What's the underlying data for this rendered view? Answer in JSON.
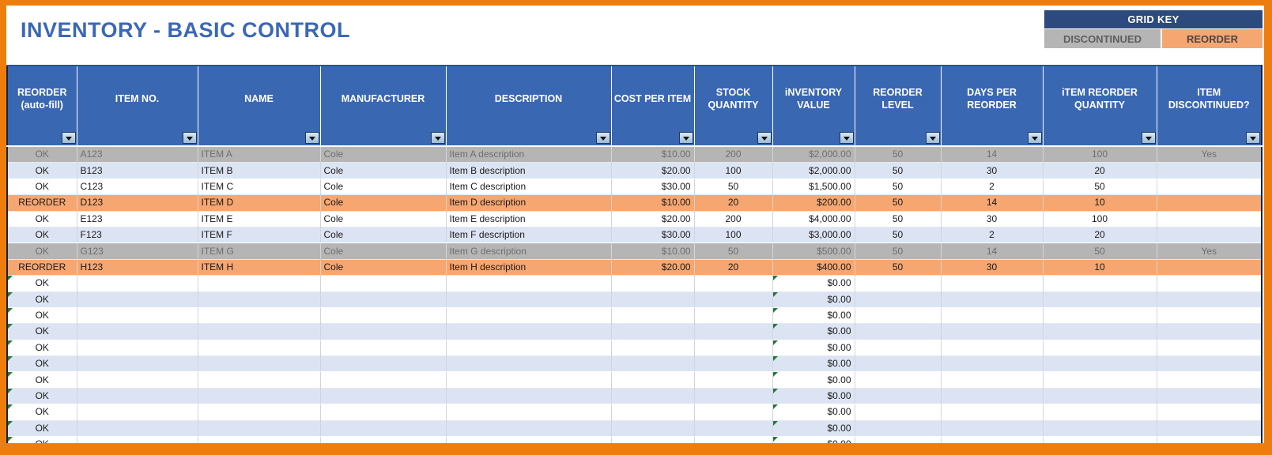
{
  "title": "INVENTORY - BASIC CONTROL",
  "grid_key": {
    "title": "GRID KEY",
    "discontinued_label": "DISCONTINUED",
    "reorder_label": "REORDER"
  },
  "colors": {
    "header_blue": "#3a67b2",
    "grid_key_navy": "#2c4a7d",
    "discontinued_gray": "#b5b5b5",
    "reorder_orange": "#f5a671",
    "band_blue": "#dce4f4",
    "page_border_orange": "#ee7d0d",
    "title_blue": "#3b67b7"
  },
  "table": {
    "columns": [
      "REORDER (auto-fill)",
      "ITEM NO.",
      "NAME",
      "MANUFACTURER",
      "DESCRIPTION",
      "COST PER ITEM",
      "STOCK QUANTITY",
      "iNVENTORY VALUE",
      "REORDER LEVEL",
      "DAYS PER REORDER",
      "iTEM REORDER QUANTITY",
      "ITEM DISCONTINUED?"
    ],
    "filter_icon": "filter-dropdown-icon",
    "filled_rows": [
      {
        "band": "gray",
        "status": "OK",
        "item_no": "A123",
        "name": "ITEM A",
        "manufacturer": "Cole",
        "description": "Item A description",
        "cost_per_item": "$10.00",
        "stock_quantity": "200",
        "inventory_value": "$2,000.00",
        "reorder_level": "50",
        "days_per_reorder": "14",
        "item_reorder_quantity": "100",
        "item_discontinued": "Yes"
      },
      {
        "band": "blue",
        "status": "OK",
        "item_no": "B123",
        "name": "ITEM B",
        "manufacturer": "Cole",
        "description": "Item B description",
        "cost_per_item": "$20.00",
        "stock_quantity": "100",
        "inventory_value": "$2,000.00",
        "reorder_level": "50",
        "days_per_reorder": "30",
        "item_reorder_quantity": "20",
        "item_discontinued": ""
      },
      {
        "band": "white",
        "status": "OK",
        "item_no": "C123",
        "name": "ITEM C",
        "manufacturer": "Cole",
        "description": "Item C description",
        "cost_per_item": "$30.00",
        "stock_quantity": "50",
        "inventory_value": "$1,500.00",
        "reorder_level": "50",
        "days_per_reorder": "2",
        "item_reorder_quantity": "50",
        "item_discontinued": ""
      },
      {
        "band": "orange",
        "status": "REORDER",
        "item_no": "D123",
        "name": "ITEM D",
        "manufacturer": "Cole",
        "description": "Item D description",
        "cost_per_item": "$10.00",
        "stock_quantity": "20",
        "inventory_value": "$200.00",
        "reorder_level": "50",
        "days_per_reorder": "14",
        "item_reorder_quantity": "10",
        "item_discontinued": ""
      },
      {
        "band": "white",
        "status": "OK",
        "item_no": "E123",
        "name": "ITEM E",
        "manufacturer": "Cole",
        "description": "Item E description",
        "cost_per_item": "$20.00",
        "stock_quantity": "200",
        "inventory_value": "$4,000.00",
        "reorder_level": "50",
        "days_per_reorder": "30",
        "item_reorder_quantity": "100",
        "item_discontinued": ""
      },
      {
        "band": "blue",
        "status": "OK",
        "item_no": "F123",
        "name": "ITEM F",
        "manufacturer": "Cole",
        "description": "Item F description",
        "cost_per_item": "$30.00",
        "stock_quantity": "100",
        "inventory_value": "$3,000.00",
        "reorder_level": "50",
        "days_per_reorder": "2",
        "item_reorder_quantity": "20",
        "item_discontinued": ""
      },
      {
        "band": "gray",
        "status": "OK",
        "item_no": "G123",
        "name": "ITEM G",
        "manufacturer": "Cole",
        "description": "Item G description",
        "cost_per_item": "$10.00",
        "stock_quantity": "50",
        "inventory_value": "$500.00",
        "reorder_level": "50",
        "days_per_reorder": "14",
        "item_reorder_quantity": "50",
        "item_discontinued": "Yes"
      },
      {
        "band": "orange",
        "status": "REORDER",
        "item_no": "H123",
        "name": "ITEM H",
        "manufacturer": "Cole",
        "description": "Item H description",
        "cost_per_item": "$20.00",
        "stock_quantity": "20",
        "inventory_value": "$400.00",
        "reorder_level": "50",
        "days_per_reorder": "30",
        "item_reorder_quantity": "10",
        "item_discontinued": ""
      }
    ],
    "empty_rows": {
      "count": 12,
      "status": "OK",
      "inventory_value": "$0.00"
    }
  }
}
